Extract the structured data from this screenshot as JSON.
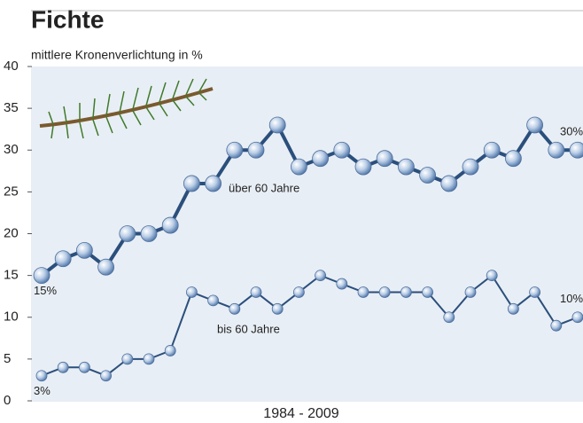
{
  "chart_data": {
    "type": "line",
    "title": "Fichte",
    "subtitle": "mittlere Kronenverlichtung in %",
    "x_label": "1984 - 2009",
    "categories": [
      null,
      null,
      null,
      null,
      null,
      null,
      null,
      null,
      null,
      null,
      null,
      null,
      null,
      null,
      null,
      null,
      null,
      null,
      null,
      null,
      null,
      null,
      null,
      null,
      null,
      null
    ],
    "ylim": [
      0,
      40
    ],
    "yticks": [
      0,
      5,
      10,
      15,
      20,
      25,
      30,
      35,
      40
    ],
    "series": [
      {
        "name": "über 60 Jahre",
        "color": "#2b4f7c",
        "values": [
          15,
          17,
          18,
          16,
          20,
          20,
          21,
          26,
          26,
          30,
          30,
          33,
          28,
          29,
          30,
          28,
          29,
          28,
          27,
          26,
          28,
          30,
          29,
          33,
          30,
          30
        ],
        "value_labels": [
          "15%",
          null,
          null,
          null,
          null,
          null,
          null,
          null,
          null,
          null,
          null,
          null,
          null,
          null,
          null,
          null,
          null,
          null,
          null,
          null,
          null,
          null,
          null,
          null,
          null,
          "30%"
        ]
      },
      {
        "name": "bis 60 Jahre",
        "color": "#2b4f7c",
        "values": [
          3,
          4,
          4,
          3,
          5,
          5,
          6,
          13,
          12,
          11,
          13,
          11,
          13,
          15,
          14,
          13,
          13,
          13,
          13,
          10,
          13,
          15,
          11,
          13,
          9,
          10
        ],
        "value_labels": [
          "3%",
          null,
          null,
          null,
          null,
          null,
          null,
          null,
          null,
          null,
          null,
          null,
          null,
          null,
          null,
          null,
          null,
          null,
          null,
          null,
          null,
          null,
          null,
          null,
          null,
          "10%"
        ]
      }
    ]
  }
}
